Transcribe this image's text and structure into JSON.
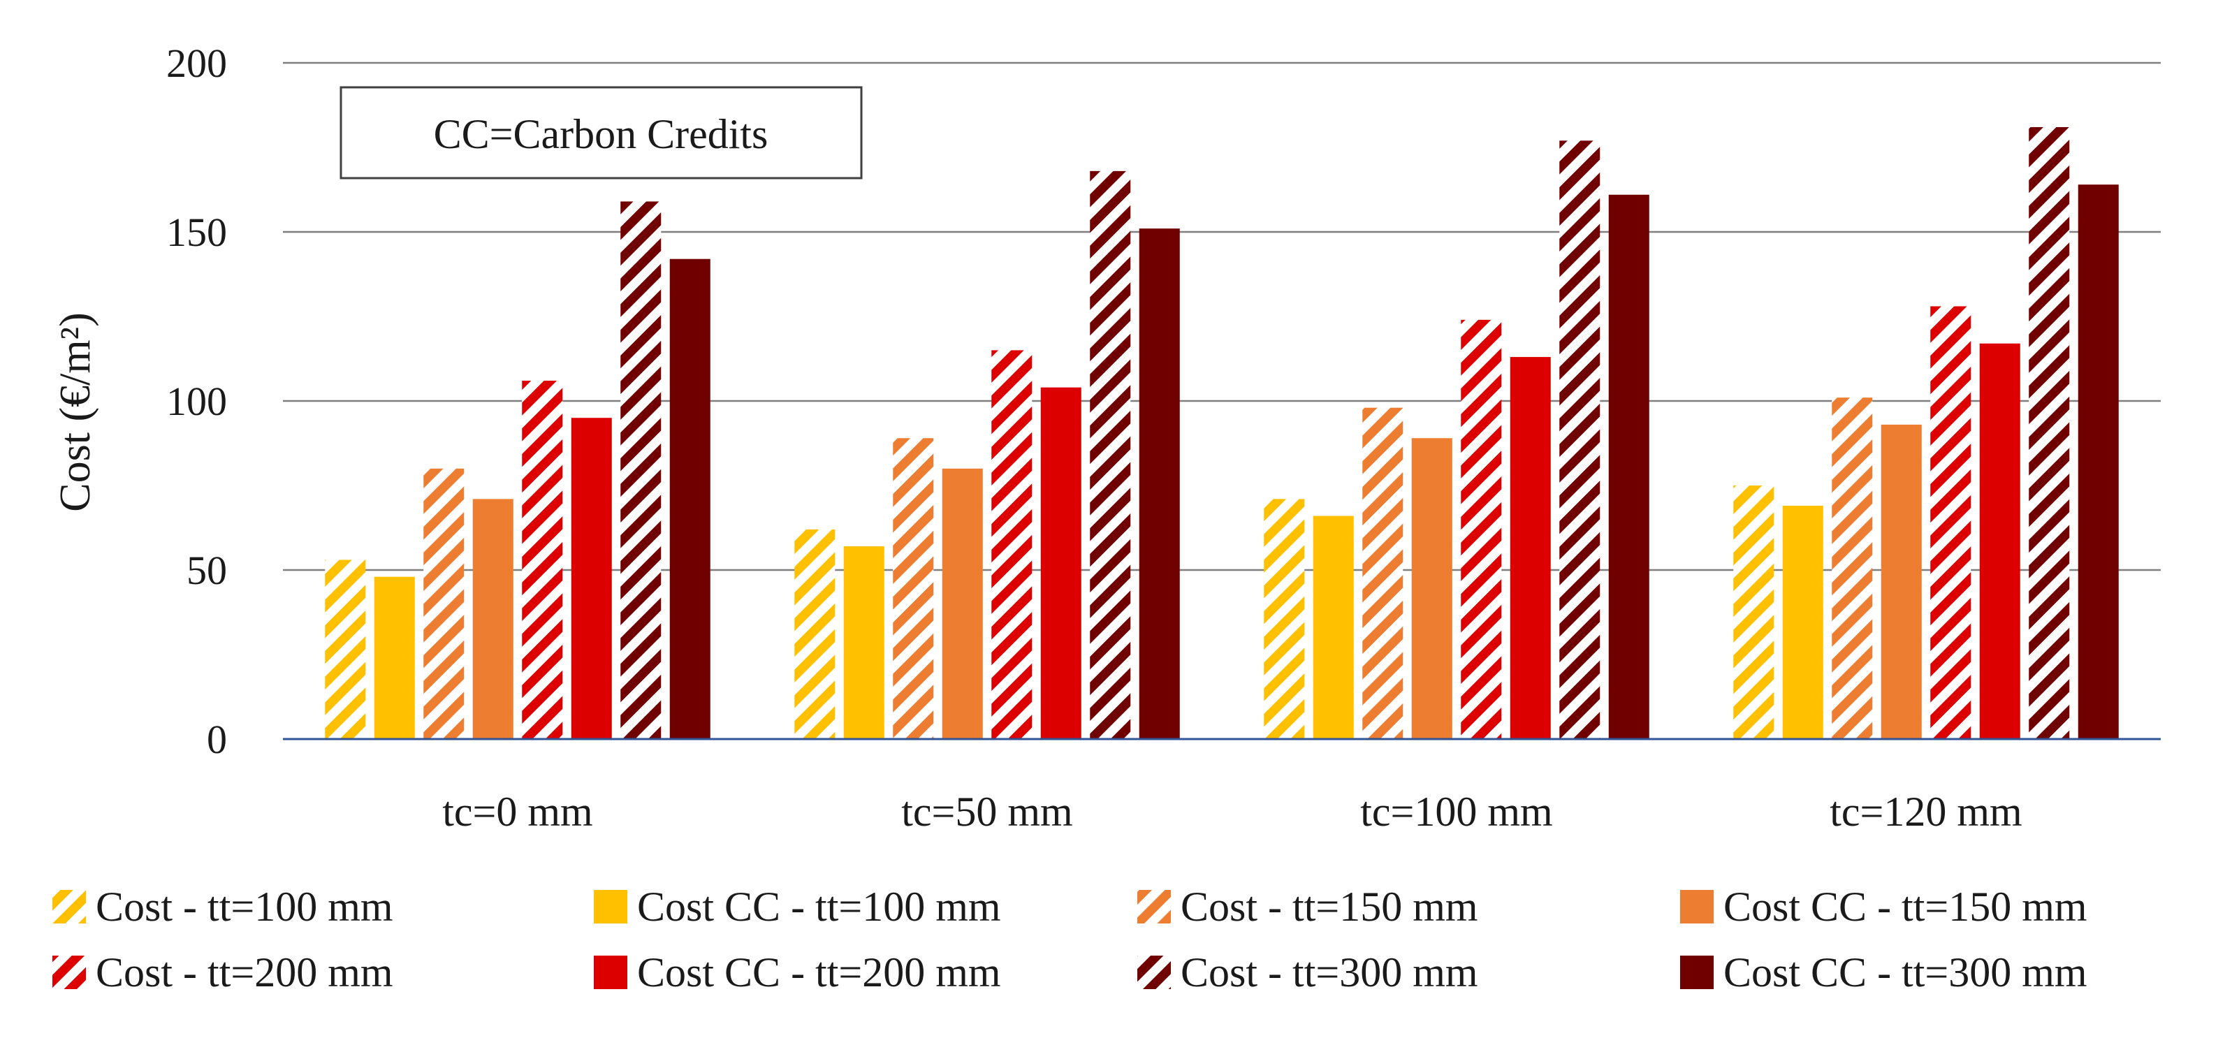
{
  "chart_data": {
    "type": "bar",
    "title": "",
    "annotation": "CC=Carbon Credits",
    "ylabel": "Cost (€/m²)",
    "xlabel": "",
    "ylim": [
      0,
      200
    ],
    "yticks": [
      0,
      50,
      100,
      150,
      200
    ],
    "grid": true,
    "legend_position": "bottom",
    "categories": [
      "tc=0 mm",
      "tc=50 mm",
      "tc=100 mm",
      "tc=120 mm"
    ],
    "series": [
      {
        "name": "Cost - tt=100 mm",
        "color": "#FFC000",
        "hatched": true,
        "values": [
          53,
          62,
          71,
          75
        ]
      },
      {
        "name": "Cost CC - tt=100 mm",
        "color": "#FFC000",
        "hatched": false,
        "values": [
          48,
          57,
          66,
          69
        ]
      },
      {
        "name": "Cost - tt=150 mm",
        "color": "#ED7D31",
        "hatched": true,
        "values": [
          80,
          89,
          98,
          101
        ]
      },
      {
        "name": "Cost CC - tt=150 mm",
        "color": "#ED7D31",
        "hatched": false,
        "values": [
          71,
          80,
          89,
          93
        ]
      },
      {
        "name": "Cost - tt=200 mm",
        "color": "#DD0000",
        "hatched": true,
        "values": [
          106,
          115,
          124,
          128
        ]
      },
      {
        "name": "Cost CC - tt=200 mm",
        "color": "#DD0000",
        "hatched": false,
        "values": [
          95,
          104,
          113,
          117
        ]
      },
      {
        "name": "Cost - tt=300 mm",
        "color": "#700000",
        "hatched": true,
        "values": [
          159,
          168,
          177,
          181
        ]
      },
      {
        "name": "Cost CC - tt=300 mm",
        "color": "#700000",
        "hatched": false,
        "values": [
          142,
          151,
          161,
          164
        ]
      }
    ]
  }
}
